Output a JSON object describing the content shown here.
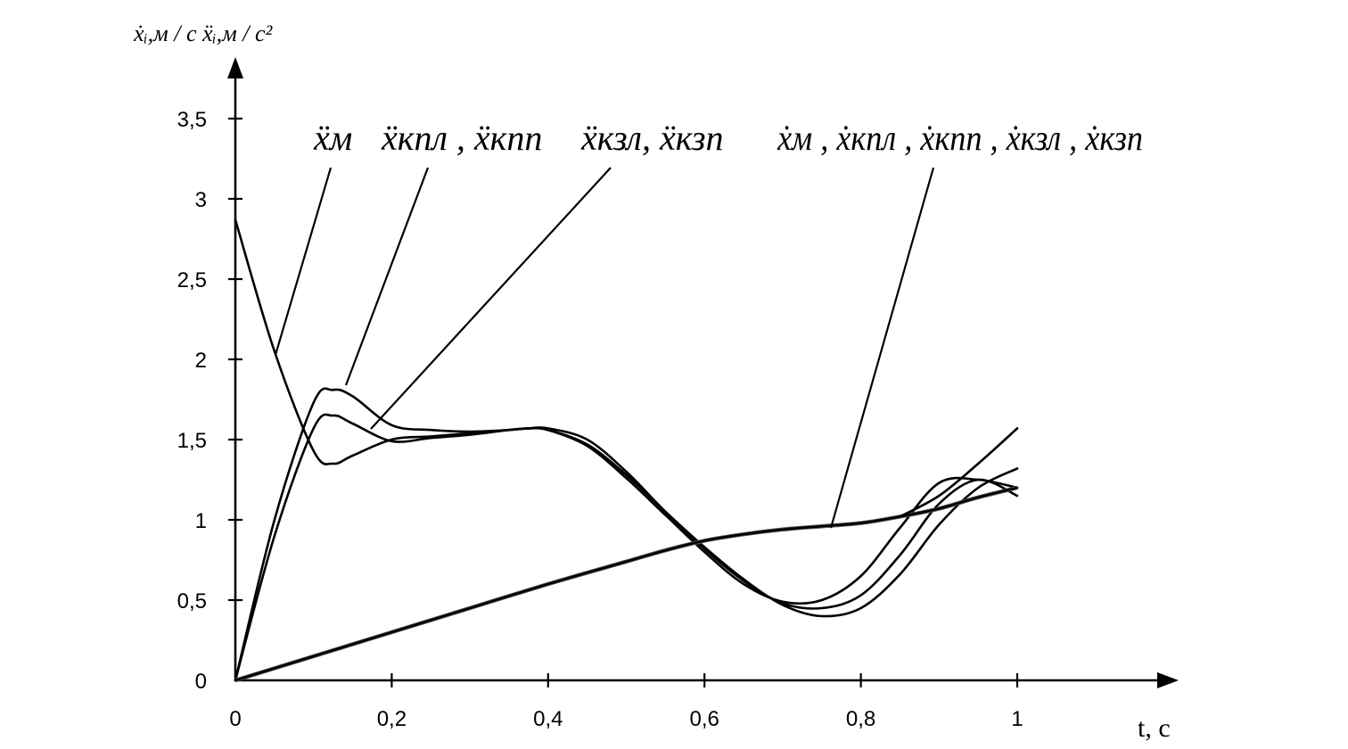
{
  "chart_data": {
    "type": "line",
    "ylabel": "ẋᵢ,м / с  ẍᵢ,м / с²",
    "xlabel": "t, с",
    "x_ticks": [
      "0",
      "0,2",
      "0,4",
      "0,6",
      "0,8",
      "1"
    ],
    "y_ticks": [
      "0",
      "0,5",
      "1",
      "1,5",
      "2",
      "2,5",
      "3",
      "3,5"
    ],
    "xlim": [
      0,
      1.2
    ],
    "ylim": [
      0,
      3.85
    ],
    "grid": false,
    "legend_labels": [
      {
        "id": "acc_m",
        "text": "ẍм"
      },
      {
        "id": "acc_kpl_kpp",
        "text": "ẍкпл , ẍкпп"
      },
      {
        "id": "acc_kzl_kzp",
        "text": "ẍкзл, ẍкзп"
      },
      {
        "id": "vel_all",
        "text": "ẋм , ẋкпл , ẋкпп , ẋкзл , ẋкзп"
      }
    ],
    "series": [
      {
        "x": [
          0,
          0.05,
          0.1,
          0.125,
          0.15,
          0.2,
          0.25,
          0.3,
          0.35,
          0.375,
          0.4,
          0.45,
          0.5,
          0.55,
          0.6,
          0.65,
          0.7,
          0.75,
          0.8,
          0.85,
          0.9,
          0.95,
          1.0
        ],
        "y": [
          2.87,
          2.05,
          1.43,
          1.35,
          1.4,
          1.5,
          1.52,
          1.54,
          1.56,
          1.57,
          1.56,
          1.47,
          1.28,
          1.05,
          0.83,
          0.63,
          0.47,
          0.4,
          0.45,
          0.66,
          0.97,
          1.2,
          1.32
        ]
      },
      {
        "x": [
          0,
          0.05,
          0.1,
          0.125,
          0.15,
          0.2,
          0.25,
          0.3,
          0.35,
          0.375,
          0.4,
          0.45,
          0.5,
          0.55,
          0.6,
          0.65,
          0.7,
          0.75,
          0.8,
          0.85,
          0.9,
          0.95,
          1.0
        ],
        "y": [
          0,
          0.9,
          1.57,
          1.65,
          1.6,
          1.49,
          1.51,
          1.53,
          1.56,
          1.57,
          1.57,
          1.5,
          1.3,
          1.05,
          0.82,
          0.62,
          0.48,
          0.45,
          0.53,
          0.78,
          1.1,
          1.25,
          1.15
        ]
      },
      {
        "x": [
          0,
          0.05,
          0.1,
          0.125,
          0.15,
          0.2,
          0.25,
          0.3,
          0.35,
          0.375,
          0.4,
          0.45,
          0.5,
          0.55,
          0.6,
          0.65,
          0.7,
          0.75,
          0.8,
          0.85,
          0.9,
          0.95,
          1.0
        ],
        "y": [
          0,
          1.0,
          1.73,
          1.81,
          1.77,
          1.59,
          1.56,
          1.55,
          1.56,
          1.57,
          1.56,
          1.46,
          1.26,
          1.03,
          0.8,
          0.6,
          0.49,
          0.5,
          0.65,
          0.95,
          1.23,
          1.25,
          1.2
        ]
      },
      {
        "x": [
          0,
          0.1,
          0.2,
          0.3,
          0.4,
          0.5,
          0.55,
          0.6,
          0.65,
          0.7,
          0.75,
          0.8,
          0.85,
          0.9,
          0.95,
          1.0
        ],
        "y": [
          0,
          0.15,
          0.3,
          0.45,
          0.6,
          0.74,
          0.81,
          0.87,
          0.91,
          0.94,
          0.96,
          0.98,
          1.02,
          1.07,
          1.14,
          1.2
        ]
      },
      {
        "x": [
          0.85,
          0.9,
          0.95,
          1.0
        ],
        "y": [
          1.02,
          1.15,
          1.35,
          1.57
        ]
      }
    ]
  }
}
